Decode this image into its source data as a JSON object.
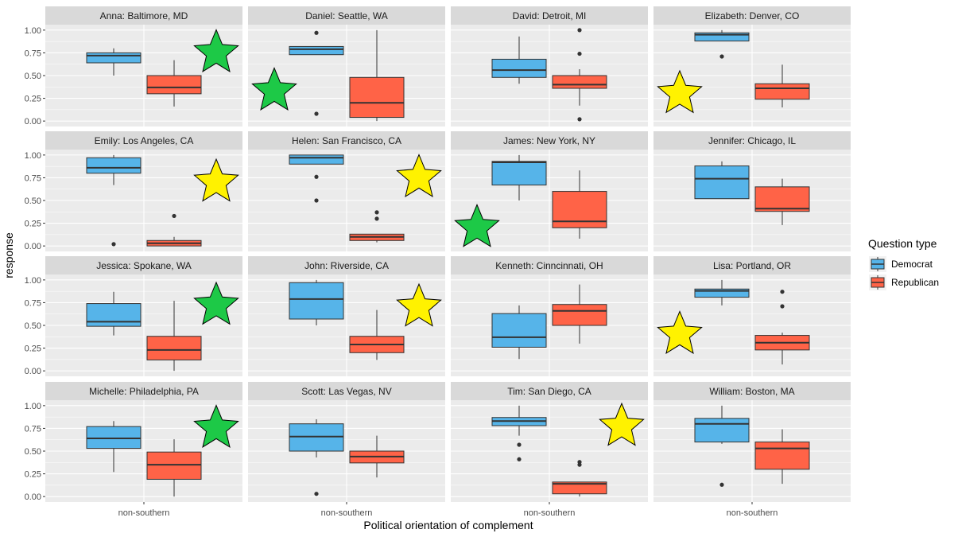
{
  "chart_data": {
    "type": "boxplot",
    "xlabel": "Political orientation of complement",
    "ylabel": "response",
    "x_category": "non-southern",
    "ylim": [
      -0.06,
      1.06
    ],
    "yticks": [
      0.0,
      0.25,
      0.5,
      0.75,
      1.0
    ],
    "ytick_labels": [
      "0.00",
      "0.25",
      "0.50",
      "0.75",
      "1.00"
    ],
    "grid": true,
    "legend": {
      "title": "Question type",
      "position": "right",
      "entries": [
        {
          "name": "Democrat",
          "color": "#56B4E9"
        },
        {
          "name": "Republican",
          "color": "#FF6347"
        }
      ]
    },
    "star_colors": {
      "green": "#1DC947",
      "yellow": "#FFF200"
    },
    "panels": [
      {
        "title": "Anna: Baltimore, MD",
        "democrat": {
          "min": 0.5,
          "q1": 0.64,
          "median": 0.72,
          "q3": 0.75,
          "max": 0.8,
          "outliers": []
        },
        "republican": {
          "min": 0.16,
          "q1": 0.3,
          "median": 0.37,
          "q3": 0.5,
          "max": 0.67,
          "outliers": []
        },
        "star": {
          "color": "green",
          "side": "right",
          "y": 0.75
        }
      },
      {
        "title": "Daniel: Seattle, WA",
        "democrat": {
          "min": 0.73,
          "q1": 0.73,
          "median": 0.79,
          "q3": 0.82,
          "max": 0.82,
          "outliers": [
            0.97,
            0.08
          ]
        },
        "republican": {
          "min": 0.0,
          "q1": 0.04,
          "median": 0.2,
          "q3": 0.48,
          "max": 1.0,
          "outliers": []
        },
        "star": {
          "color": "green",
          "side": "left",
          "y": 0.33
        }
      },
      {
        "title": "David: Detroit, MI",
        "democrat": {
          "min": 0.41,
          "q1": 0.48,
          "median": 0.56,
          "q3": 0.68,
          "max": 0.93,
          "outliers": []
        },
        "republican": {
          "min": 0.17,
          "q1": 0.36,
          "median": 0.4,
          "q3": 0.5,
          "max": 0.57,
          "outliers": [
            1.0,
            0.74,
            0.02
          ]
        },
        "star": null
      },
      {
        "title": "Elizabeth: Denver, CO",
        "democrat": {
          "min": 0.88,
          "q1": 0.88,
          "median": 0.95,
          "q3": 0.97,
          "max": 1.0,
          "outliers": [
            0.71
          ]
        },
        "republican": {
          "min": 0.15,
          "q1": 0.24,
          "median": 0.36,
          "q3": 0.41,
          "max": 0.62,
          "outliers": []
        },
        "star": {
          "color": "yellow",
          "side": "left",
          "y": 0.3
        }
      },
      {
        "title": "Emily: Los Angeles, CA",
        "democrat": {
          "min": 0.67,
          "q1": 0.8,
          "median": 0.86,
          "q3": 0.97,
          "max": 1.0,
          "outliers": [
            0.02
          ]
        },
        "republican": {
          "min": 0.0,
          "q1": 0.0,
          "median": 0.03,
          "q3": 0.06,
          "max": 0.1,
          "outliers": [
            0.33
          ]
        },
        "star": {
          "color": "yellow",
          "side": "right",
          "y": 0.7
        }
      },
      {
        "title": "Helen: San Francisco, CA",
        "democrat": {
          "min": 0.9,
          "q1": 0.9,
          "median": 0.97,
          "q3": 1.0,
          "max": 1.0,
          "outliers": [
            0.76,
            0.5
          ]
        },
        "republican": {
          "min": 0.04,
          "q1": 0.06,
          "median": 0.1,
          "q3": 0.13,
          "max": 0.13,
          "outliers": [
            0.37,
            0.3
          ]
        },
        "star": {
          "color": "yellow",
          "side": "right",
          "y": 0.75
        }
      },
      {
        "title": "James: New York, NY",
        "democrat": {
          "min": 0.5,
          "q1": 0.67,
          "median": 0.92,
          "q3": 0.93,
          "max": 1.0,
          "outliers": []
        },
        "republican": {
          "min": 0.08,
          "q1": 0.2,
          "median": 0.27,
          "q3": 0.6,
          "max": 0.83,
          "outliers": []
        },
        "star": {
          "color": "green",
          "side": "left",
          "y": 0.2
        }
      },
      {
        "title": "Jennifer: Chicago, IL",
        "democrat": {
          "min": 0.52,
          "q1": 0.52,
          "median": 0.74,
          "q3": 0.88,
          "max": 0.93,
          "outliers": []
        },
        "republican": {
          "min": 0.23,
          "q1": 0.38,
          "median": 0.41,
          "q3": 0.65,
          "max": 0.74,
          "outliers": []
        },
        "star": null
      },
      {
        "title": "Jessica: Spokane, WA",
        "democrat": {
          "min": 0.39,
          "q1": 0.49,
          "median": 0.54,
          "q3": 0.74,
          "max": 0.87,
          "outliers": []
        },
        "republican": {
          "min": 0.0,
          "q1": 0.12,
          "median": 0.23,
          "q3": 0.38,
          "max": 0.77,
          "outliers": []
        },
        "star": {
          "color": "green",
          "side": "right",
          "y": 0.72
        }
      },
      {
        "title": "John: Riverside, CA",
        "democrat": {
          "min": 0.5,
          "q1": 0.57,
          "median": 0.79,
          "q3": 0.97,
          "max": 1.0,
          "outliers": []
        },
        "republican": {
          "min": 0.12,
          "q1": 0.2,
          "median": 0.29,
          "q3": 0.38,
          "max": 0.67,
          "outliers": []
        },
        "star": {
          "color": "yellow",
          "side": "right",
          "y": 0.7
        }
      },
      {
        "title": "Kenneth: Cinncinnati, OH",
        "democrat": {
          "min": 0.13,
          "q1": 0.26,
          "median": 0.37,
          "q3": 0.63,
          "max": 0.72,
          "outliers": []
        },
        "republican": {
          "min": 0.3,
          "q1": 0.5,
          "median": 0.66,
          "q3": 0.73,
          "max": 0.95,
          "outliers": []
        },
        "star": null
      },
      {
        "title": "Lisa: Portland, OR",
        "democrat": {
          "min": 0.72,
          "q1": 0.81,
          "median": 0.88,
          "q3": 0.9,
          "max": 1.0,
          "outliers": []
        },
        "republican": {
          "min": 0.07,
          "q1": 0.23,
          "median": 0.31,
          "q3": 0.39,
          "max": 0.42,
          "outliers": [
            0.87,
            0.71
          ]
        },
        "star": {
          "color": "yellow",
          "side": "left",
          "y": 0.4
        }
      },
      {
        "title": "Michelle: Philadelphia, PA",
        "democrat": {
          "min": 0.27,
          "q1": 0.53,
          "median": 0.64,
          "q3": 0.77,
          "max": 0.83,
          "outliers": []
        },
        "republican": {
          "min": 0.0,
          "q1": 0.19,
          "median": 0.35,
          "q3": 0.49,
          "max": 0.63,
          "outliers": []
        },
        "star": {
          "color": "green",
          "side": "right",
          "y": 0.75
        }
      },
      {
        "title": "Scott: Las Vegas, NV",
        "democrat": {
          "min": 0.43,
          "q1": 0.5,
          "median": 0.66,
          "q3": 0.8,
          "max": 0.85,
          "outliers": [
            0.03
          ]
        },
        "republican": {
          "min": 0.21,
          "q1": 0.37,
          "median": 0.44,
          "q3": 0.5,
          "max": 0.67,
          "outliers": []
        },
        "star": null
      },
      {
        "title": "Tim: San Diego, CA",
        "democrat": {
          "min": 0.67,
          "q1": 0.78,
          "median": 0.83,
          "q3": 0.87,
          "max": 1.0,
          "outliers": [
            0.57,
            0.41
          ]
        },
        "republican": {
          "min": 0.0,
          "q1": 0.03,
          "median": 0.14,
          "q3": 0.16,
          "max": 0.16,
          "outliers": [
            0.38,
            0.35
          ]
        },
        "star": {
          "color": "yellow",
          "side": "right",
          "y": 0.77
        }
      },
      {
        "title": "William: Boston, MA",
        "democrat": {
          "min": 0.58,
          "q1": 0.6,
          "median": 0.8,
          "q3": 0.86,
          "max": 1.0,
          "outliers": [
            0.13
          ]
        },
        "republican": {
          "min": 0.14,
          "q1": 0.3,
          "median": 0.53,
          "q3": 0.6,
          "max": 0.74,
          "outliers": []
        },
        "star": null
      }
    ]
  }
}
